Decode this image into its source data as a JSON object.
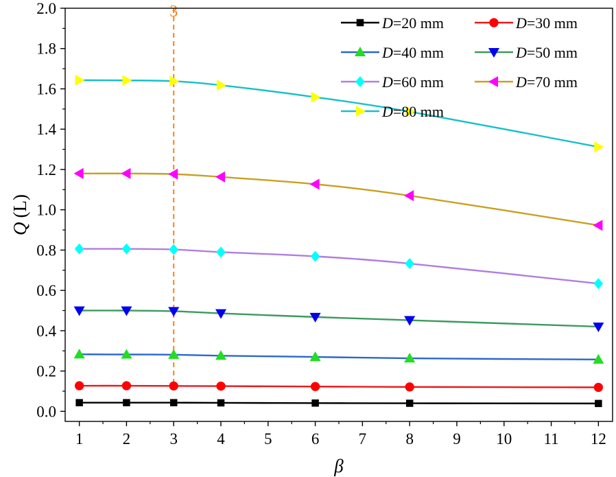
{
  "chart_data": {
    "type": "line",
    "title": "",
    "xlabel": "β",
    "ylabel_symbol": "Q",
    "ylabel_unit": "(L)",
    "x": [
      1,
      2,
      3,
      4,
      6,
      8,
      12
    ],
    "xlim": [
      0.7,
      12.3
    ],
    "ylim": [
      -0.05,
      2.0
    ],
    "xticks": [
      1,
      2,
      3,
      4,
      5,
      6,
      7,
      8,
      9,
      10,
      11,
      12
    ],
    "yticks": [
      0.0,
      0.2,
      0.4,
      0.6,
      0.8,
      1.0,
      1.2,
      1.4,
      1.6,
      1.8,
      2.0
    ],
    "ytick_labels": [
      "0.0",
      "0.2",
      "0.4",
      "0.6",
      "0.8",
      "1.0",
      "1.2",
      "1.4",
      "1.6",
      "1.8",
      "2.0"
    ],
    "grid": false,
    "legend_position": "top-right",
    "series": [
      {
        "name": "D=20 mm",
        "legend_var": "D",
        "legend_rest": "=20 mm",
        "line_color": "#000000",
        "marker_color": "#000000",
        "marker": "square",
        "values": [
          0.043,
          0.043,
          0.043,
          0.042,
          0.041,
          0.04,
          0.039
        ]
      },
      {
        "name": "D=30 mm",
        "legend_var": "D",
        "legend_rest": "=30 mm",
        "line_color": "#e8191d",
        "marker_color": "#ff0000",
        "marker": "circle",
        "values": [
          0.127,
          0.127,
          0.126,
          0.125,
          0.123,
          0.121,
          0.119
        ]
      },
      {
        "name": "D=40 mm",
        "legend_var": "D",
        "legend_rest": "=40 mm",
        "line_color": "#2b67cf",
        "marker_color": "#22dd22",
        "marker": "triangle-up",
        "values": [
          0.283,
          0.282,
          0.281,
          0.276,
          0.27,
          0.263,
          0.257
        ]
      },
      {
        "name": "D=50 mm",
        "legend_var": "D",
        "legend_rest": "=50 mm",
        "line_color": "#3c9a5f",
        "marker_color": "#0000ee",
        "marker": "triangle-down",
        "values": [
          0.5,
          0.5,
          0.497,
          0.486,
          0.468,
          0.452,
          0.42
        ]
      },
      {
        "name": "D=60 mm",
        "legend_var": "D",
        "legend_rest": "=60 mm",
        "line_color": "#b07ee0",
        "marker_color": "#00ffff",
        "marker": "diamond",
        "values": [
          0.806,
          0.806,
          0.803,
          0.79,
          0.769,
          0.733,
          0.634
        ]
      },
      {
        "name": "D=70 mm",
        "legend_var": "D",
        "legend_rest": "=70 mm",
        "line_color": "#c9a022",
        "marker_color": "#ff00ff",
        "marker": "triangle-left",
        "values": [
          1.18,
          1.18,
          1.177,
          1.163,
          1.127,
          1.07,
          0.923
        ]
      },
      {
        "name": "D=80 mm",
        "legend_var": "D",
        "legend_rest": "=80 mm",
        "line_color": "#18c0c8",
        "marker_color": "#ffff00",
        "marker": "triangle-right",
        "values": [
          1.643,
          1.642,
          1.638,
          1.618,
          1.559,
          1.487,
          1.312
        ]
      }
    ],
    "annotations": [
      {
        "type": "vline",
        "x": 3,
        "label": "3",
        "color": "#f5821f"
      }
    ]
  }
}
